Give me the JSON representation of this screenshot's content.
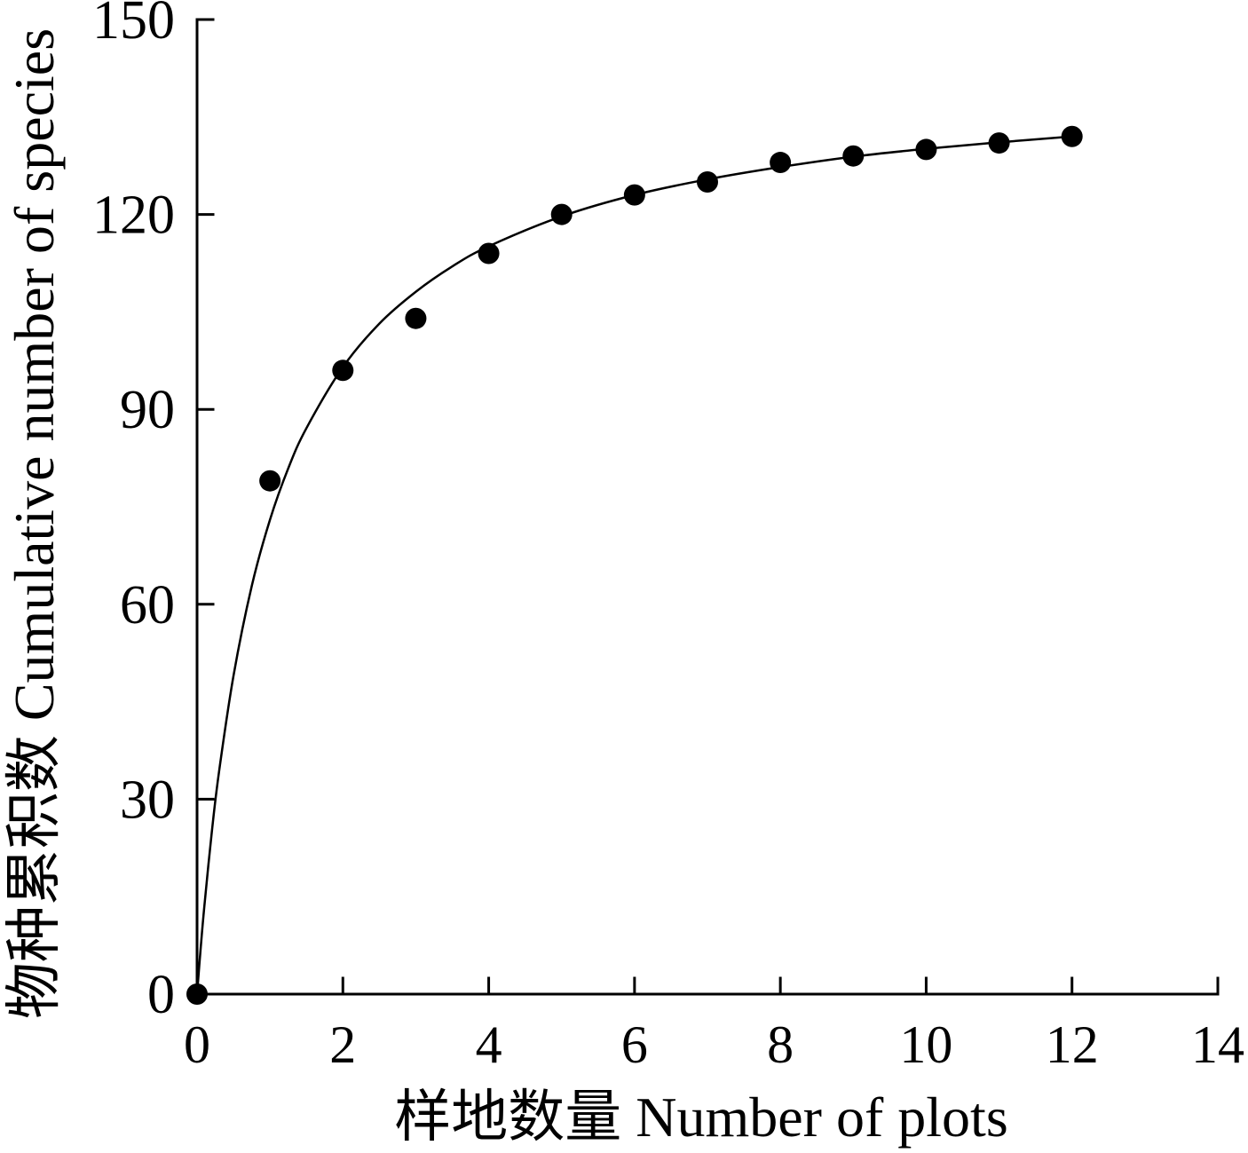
{
  "chart_data": {
    "type": "scatter",
    "xlabel": "样地数量 Number of plots",
    "ylabel": "物种累积数 Cumulative number of species",
    "xlim": [
      0,
      14
    ],
    "ylim": [
      0,
      150
    ],
    "x_ticks": [
      0,
      2,
      4,
      6,
      8,
      10,
      12,
      14
    ],
    "y_ticks": [
      0,
      30,
      60,
      90,
      120,
      150
    ],
    "grid": false,
    "legend": "none",
    "series": [
      {
        "type": "scatter",
        "x": [
          0,
          1,
          2,
          3,
          4,
          5,
          6,
          7,
          8,
          9,
          10,
          11,
          12
        ],
        "y": [
          0,
          79,
          96,
          104,
          114,
          120,
          123,
          125,
          128,
          129,
          130,
          131,
          132
        ]
      },
      {
        "type": "line",
        "x": [
          0,
          0.05,
          0.1,
          0.2,
          0.3,
          0.5,
          0.75,
          1,
          1.25,
          1.5,
          2,
          2.5,
          3,
          3.5,
          4,
          5,
          6,
          7,
          8,
          9,
          10,
          11,
          12
        ],
        "y": [
          0,
          7.1,
          13.5,
          24.7,
          34.1,
          49.0,
          62.8,
          73.0,
          80.9,
          87.1,
          96.5,
          103.2,
          108.1,
          112.0,
          115.1,
          119.7,
          123.0,
          125.4,
          127.3,
          128.9,
          130.1,
          131.1,
          132.0
        ]
      }
    ],
    "colors": {
      "marker": "#000000",
      "line": "#000000"
    }
  }
}
